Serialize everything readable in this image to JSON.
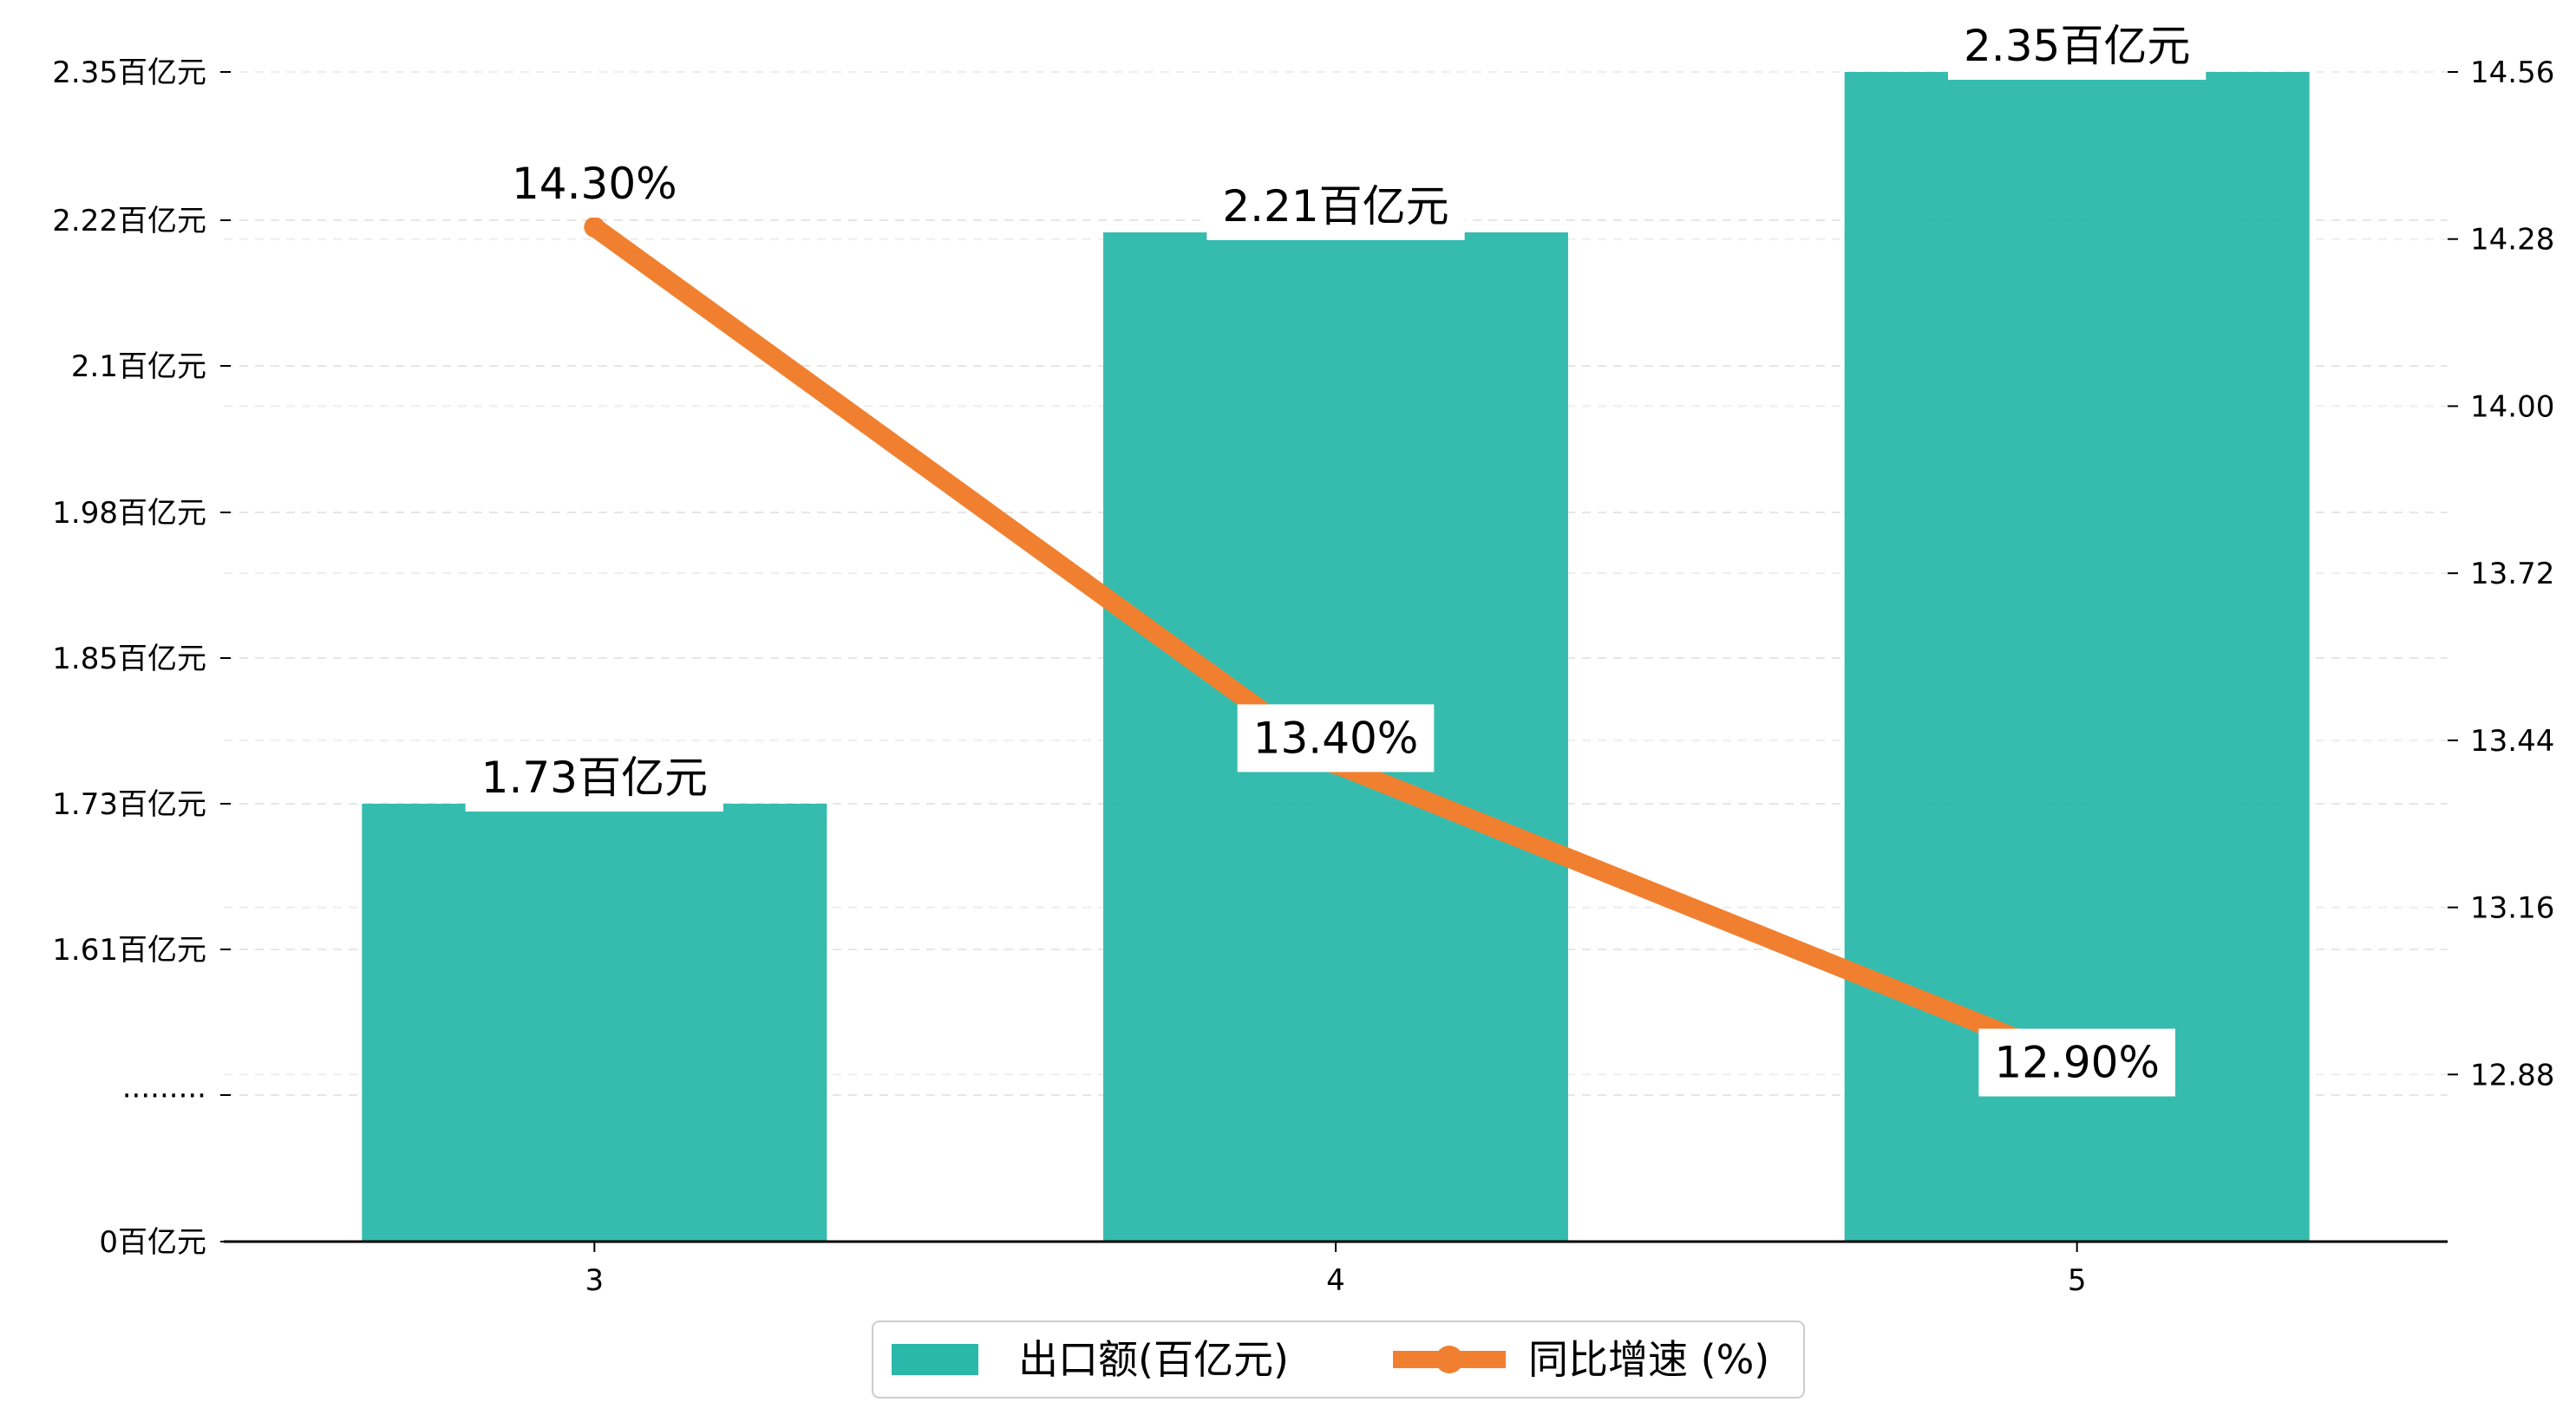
{
  "chart_data": {
    "type": "bar",
    "categories": [
      "3",
      "4",
      "5"
    ],
    "series": [
      {
        "name": "出口额(百亿元)",
        "type": "bar",
        "axis": "left",
        "values": [
          1.73,
          2.21,
          2.35
        ],
        "labels": [
          "1.73百亿元",
          "2.21百亿元",
          "2.35百亿元"
        ],
        "color": "#2ab8aa"
      },
      {
        "name": "同比增速 (%)",
        "type": "line",
        "axis": "right",
        "values": [
          14.3,
          13.4,
          12.9
        ],
        "labels": [
          "14.30%",
          "13.40%",
          "12.90%"
        ],
        "color": "#f08030"
      }
    ],
    "left_axis": {
      "tick_labels": [
        "0百亿元",
        "·········",
        "1.61百亿元",
        "1.73百亿元",
        "1.85百亿元",
        "1.98百亿元",
        "2.1百亿元",
        "2.22百亿元",
        "2.35百亿元"
      ],
      "tick_values": [
        0,
        1.49,
        1.61,
        1.73,
        1.85,
        1.98,
        2.1,
        2.22,
        2.35
      ],
      "broken": true
    },
    "right_axis": {
      "tick_labels": [
        "12.88",
        "13.16",
        "13.44",
        "13.72",
        "14.00",
        "14.28",
        "14.56"
      ],
      "tick_values": [
        12.88,
        13.16,
        13.44,
        13.72,
        14.0,
        14.28,
        14.56
      ],
      "range": [
        12.6,
        14.56
      ]
    },
    "grid": "horizontal dashed",
    "legend_position": "bottom-center"
  }
}
